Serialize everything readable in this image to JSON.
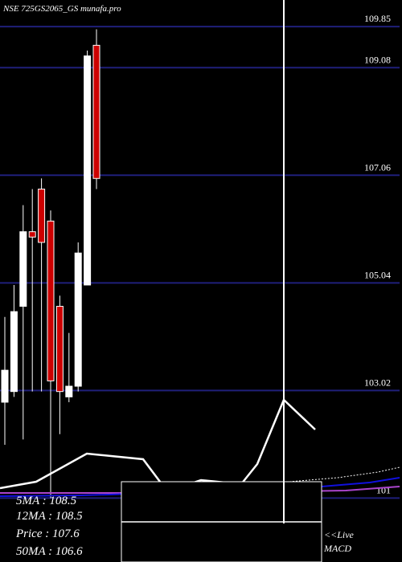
{
  "chart_data": {
    "type": "candlestick",
    "title": "NSE 725GS2065_GS munafa.pro",
    "y_ticks": [
      {
        "value": 109.85,
        "label": "109.85"
      },
      {
        "value": 109.08,
        "label": "109.08"
      },
      {
        "value": 107.06,
        "label": "107.06"
      },
      {
        "value": 105.04,
        "label": "105.04"
      },
      {
        "value": 103.02,
        "label": "103.02"
      },
      {
        "value": 101,
        "label": "101"
      }
    ],
    "ylim": [
      99.8,
      110.35
    ],
    "grid": true,
    "candles": [
      {
        "open": 102.8,
        "close": 103.4,
        "high": 104.4,
        "low": 102.0,
        "color": "white"
      },
      {
        "open": 103.0,
        "close": 104.5,
        "high": 105.0,
        "low": 102.9,
        "color": "white"
      },
      {
        "open": 104.6,
        "close": 106.0,
        "high": 106.5,
        "low": 102.1,
        "color": "white"
      },
      {
        "open": 106.0,
        "close": 105.9,
        "high": 106.8,
        "low": 103.0,
        "color": "red"
      },
      {
        "open": 106.8,
        "close": 105.8,
        "high": 107.0,
        "low": 103.0,
        "color": "red"
      },
      {
        "open": 106.2,
        "close": 103.2,
        "high": 106.4,
        "low": 101.0,
        "color": "red"
      },
      {
        "open": 104.6,
        "close": 103.0,
        "high": 104.8,
        "low": 102.2,
        "color": "red"
      },
      {
        "open": 102.9,
        "close": 103.1,
        "high": 104.1,
        "low": 102.8,
        "color": "white"
      },
      {
        "open": 103.1,
        "close": 105.6,
        "high": 105.8,
        "low": 103.0,
        "color": "white"
      },
      {
        "open": 105.0,
        "close": 109.3,
        "high": 109.4,
        "low": 105.0,
        "color": "white"
      },
      {
        "open": 109.5,
        "close": 107.0,
        "high": 109.8,
        "low": 106.8,
        "color": "red"
      }
    ],
    "macd_line": [
      {
        "x": 0,
        "y": 608
      },
      {
        "x": 45,
        "y": 600
      },
      {
        "x": 108,
        "y": 565
      },
      {
        "x": 178,
        "y": 572
      },
      {
        "x": 208,
        "y": 612
      },
      {
        "x": 250,
        "y": 598
      },
      {
        "x": 300,
        "y": 603
      },
      {
        "x": 320,
        "y": 578
      },
      {
        "x": 353,
        "y": 498
      },
      {
        "x": 392,
        "y": 535
      }
    ],
    "dotted_line": [
      {
        "x": 360,
        "y": 600
      },
      {
        "x": 420,
        "y": 595
      },
      {
        "x": 470,
        "y": 588
      },
      {
        "x": 497,
        "y": 582
      }
    ],
    "blue_line": [
      {
        "x": 0,
        "y": 618
      },
      {
        "x": 100,
        "y": 617
      },
      {
        "x": 200,
        "y": 614
      },
      {
        "x": 300,
        "y": 610
      },
      {
        "x": 400,
        "y": 606
      },
      {
        "x": 460,
        "y": 601
      },
      {
        "x": 497,
        "y": 595
      }
    ],
    "purple_line": [
      {
        "x": 0,
        "y": 614
      },
      {
        "x": 150,
        "y": 614
      },
      {
        "x": 360,
        "y": 612
      },
      {
        "x": 430,
        "y": 611
      },
      {
        "x": 470,
        "y": 608
      },
      {
        "x": 497,
        "y": 606
      }
    ],
    "vertical_marker_index": 11,
    "moving_averages": [
      {
        "label": "5MA : 108.5"
      },
      {
        "label": "12MA : 108.5"
      },
      {
        "label": "Price   : 107.6"
      },
      {
        "label": "50MA : 106.6"
      }
    ],
    "live_label_line1": "<<Live",
    "live_label_line2": "MACD",
    "colors": {
      "background": "#000000",
      "grid": "#1f1f7a",
      "up_candle": "#ffffff",
      "down_candle": "#cc0000",
      "macd": "#ffffff",
      "signal_blue": "#1010dd",
      "signal_purple": "#aa44cc"
    }
  }
}
